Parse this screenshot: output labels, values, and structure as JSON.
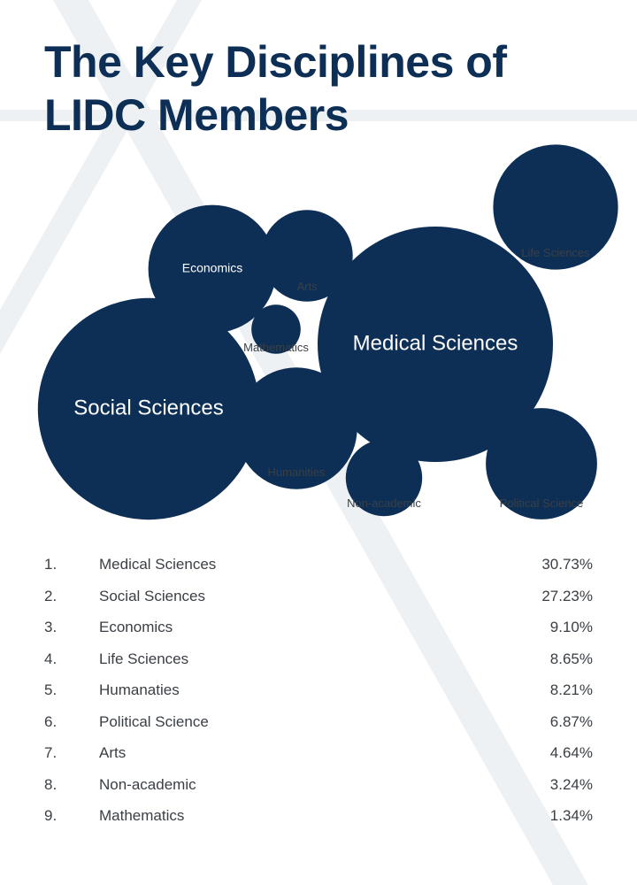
{
  "title": "The Key Disciplines of LIDC Members",
  "colors": {
    "bubble": "#0e2f55",
    "title": "#0e2f55",
    "text": "#3a3f45",
    "background_stripes": "#eef1f3"
  },
  "chart_data": {
    "type": "bubble",
    "title": "The Key Disciplines of LIDC Members",
    "bubbles": [
      {
        "label": "Life Sciences",
        "value": 8.65
      },
      {
        "label": "Economics",
        "value": 9.1
      },
      {
        "label": "Arts",
        "value": 4.64
      },
      {
        "label": "Medical Sciences",
        "value": 30.73
      },
      {
        "label": "Mathematics",
        "value": 1.34
      },
      {
        "label": "Social Sciences",
        "value": 27.23
      },
      {
        "label": "Humanities",
        "value": 8.21
      },
      {
        "label": "Non-academic",
        "value": 3.24
      },
      {
        "label": "Political Science",
        "value": 6.87
      }
    ],
    "ranking": [
      {
        "rank": "1.",
        "label": "Medical Sciences",
        "value": "30.73%"
      },
      {
        "rank": "2.",
        "label": "Social Sciences",
        "value": "27.23%"
      },
      {
        "rank": "3.",
        "label": "Economics",
        "value": "9.10%"
      },
      {
        "rank": "4.",
        "label": "Life Sciences",
        "value": "8.65%"
      },
      {
        "rank": "5.",
        "label": "Humanaties",
        "value": "8.21%"
      },
      {
        "rank": "6.",
        "label": "Political Science",
        "value": "6.87%"
      },
      {
        "rank": "7.",
        "label": "Arts",
        "value": "4.64%"
      },
      {
        "rank": "8.",
        "label": "Non-academic",
        "value": "3.24%"
      },
      {
        "rank": "9.",
        "label": "Mathematics",
        "value": "1.34%"
      }
    ]
  }
}
